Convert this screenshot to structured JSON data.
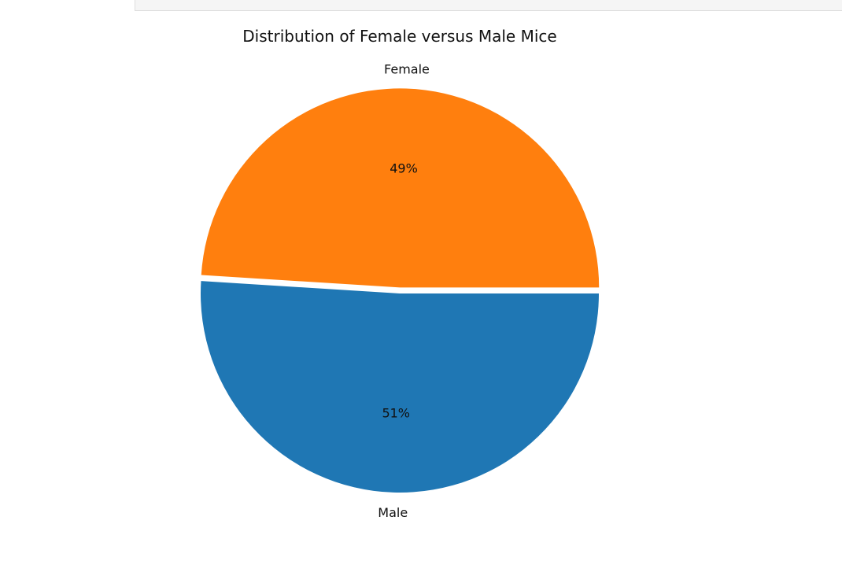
{
  "chart_data": {
    "type": "pie",
    "title": "Distribution of Female versus Male Mice",
    "categories": [
      "Female",
      "Male"
    ],
    "values": [
      49,
      51
    ],
    "labels": [
      "Female",
      "Male"
    ],
    "autopct_labels": [
      "49%",
      "51%"
    ],
    "colors": [
      "#ff7f0e",
      "#1f77b4"
    ],
    "explode": [
      0.03,
      0
    ],
    "start_angle_deg": 0,
    "legend": "none"
  }
}
